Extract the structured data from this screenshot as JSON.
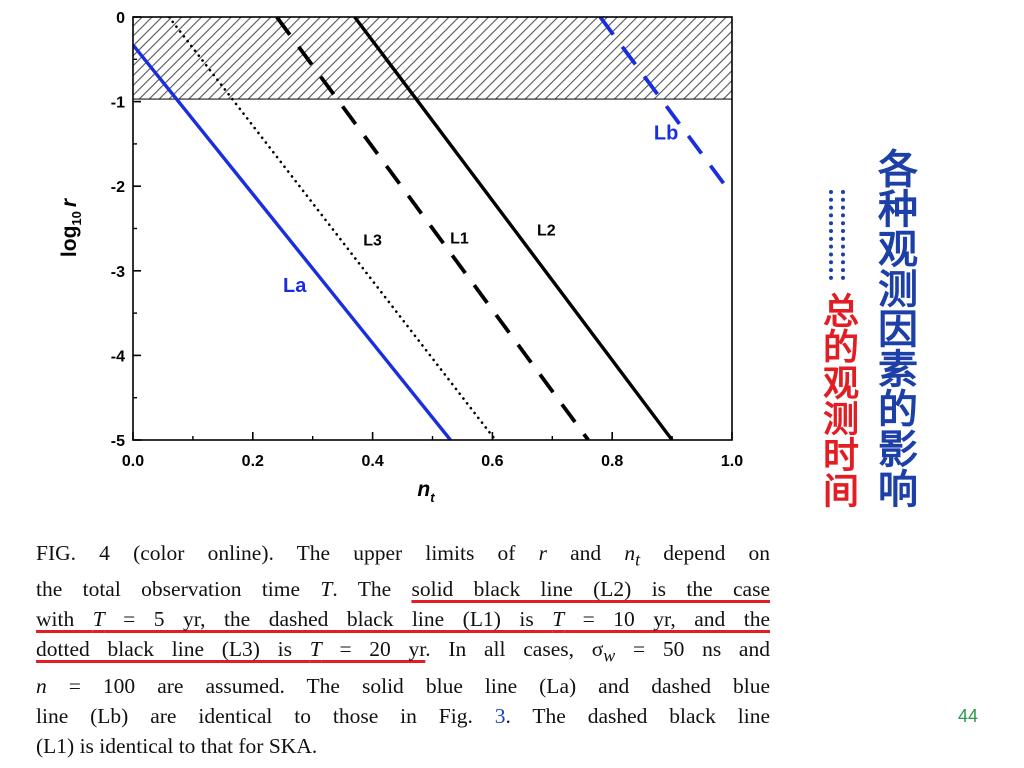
{
  "chart_data": {
    "type": "line",
    "xlabel": "n",
    "xlabel_sub": "t",
    "ylabel": "log",
    "ylabel_sub": "10",
    "ylabel_var": "r",
    "xlim": [
      0.0,
      1.0
    ],
    "ylim": [
      -5,
      0
    ],
    "xticks": [
      "0.0",
      "0.2",
      "0.4",
      "0.6",
      "0.8",
      "1.0"
    ],
    "yticks": [
      "0",
      "-1",
      "-2",
      "-3",
      "-4",
      "-5"
    ],
    "excluded_region": {
      "y_from": -0.97,
      "y_to": 0
    },
    "series": [
      {
        "name": "La",
        "color": "#1a2ee0",
        "style": "solid",
        "points": [
          [
            0.0,
            -0.33
          ],
          [
            0.53,
            -5.0
          ]
        ]
      },
      {
        "name": "L3",
        "color": "#000000",
        "style": "dotted",
        "points": [
          [
            0.06,
            0.0
          ],
          [
            0.605,
            -5.0
          ]
        ]
      },
      {
        "name": "L1",
        "color": "#000000",
        "style": "dashed",
        "points": [
          [
            0.24,
            0.0
          ],
          [
            0.76,
            -5.0
          ]
        ]
      },
      {
        "name": "L2",
        "color": "#000000",
        "style": "solid",
        "points": [
          [
            0.37,
            0.0
          ],
          [
            0.9,
            -5.0
          ]
        ]
      },
      {
        "name": "Lb",
        "color": "#1a2ee0",
        "style": "dashed",
        "points": [
          [
            0.78,
            0.0
          ],
          [
            1.0,
            -2.1
          ]
        ]
      }
    ],
    "annotations": [
      {
        "text": "La",
        "x": 0.27,
        "y": -3.25,
        "color": "#1a2ee0"
      },
      {
        "text": "L3",
        "x": 0.4,
        "y": -2.7,
        "color": "#000000"
      },
      {
        "text": "L1",
        "x": 0.545,
        "y": -2.68,
        "color": "#000000"
      },
      {
        "text": "L2",
        "x": 0.69,
        "y": -2.58,
        "color": "#000000"
      },
      {
        "text": "Lb",
        "x": 0.89,
        "y": -1.45,
        "color": "#1a2ee0"
      }
    ]
  },
  "caption": {
    "l1a": "FIG. 4 (color online).   The upper limits of ",
    "l1b": "r",
    "l1c": " and ",
    "l1d": "n",
    "l1e": "t",
    "l1f": " depend on",
    "l2a": "the total observation time ",
    "l2b": "T",
    "l2c": ". The ",
    "l2d": "solid black line (L2) is the case",
    "l3a": "with ",
    "l3b": "T",
    "l3c": " = 5 yr, the dashed black line (L1) is ",
    "l3d": "T",
    "l3e": " = 10 yr, and the",
    "l4a": "dotted black line (L3) is ",
    "l4b": "T",
    "l4c": " = 20 yr",
    "l4d": ". In all cases, σ",
    "l4e": "w",
    "l4f": " = 50 ns and",
    "l5a": "n",
    "l5b": " = 100 are assumed. The solid blue line (La) and dashed blue",
    "l6a": "line (Lb) are identical to those in Fig. ",
    "l6b": "3",
    "l6c": ". The dashed black line",
    "l7": "(L1) is identical to that for SKA."
  },
  "side": {
    "main": "各种观测因素的影响",
    "sub": "总的观测时间"
  },
  "page_number": "44"
}
